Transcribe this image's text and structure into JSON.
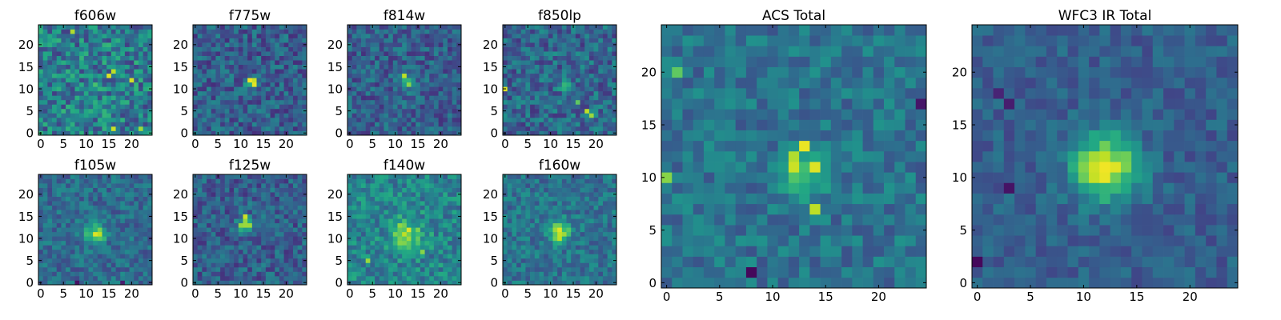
{
  "colors": {
    "colormap": "viridis",
    "frame": "#000000",
    "background": "#ffffff"
  },
  "chart_data": [
    {
      "type": "heatmap",
      "title": "f606w",
      "grid_size": 25,
      "xlim": [
        -0.5,
        24.5
      ],
      "ylim": [
        -0.5,
        24.5
      ],
      "xticks": [
        0,
        5,
        10,
        15,
        20
      ],
      "yticks": [
        0,
        5,
        10,
        15,
        20
      ],
      "colormap": "viridis",
      "seed": 606,
      "background_level": 0.42,
      "noise": 0.24,
      "sources": [
        {
          "x": 12,
          "y": 11,
          "sigma": 1.2,
          "amp": 0.1
        }
      ],
      "hotspots": [
        {
          "x": 15,
          "y": 13,
          "v": 0.95
        },
        {
          "x": 16,
          "y": 14,
          "v": 0.9
        },
        {
          "x": 16,
          "y": 1,
          "v": 0.92
        },
        {
          "x": 20,
          "y": 12,
          "v": 0.93
        },
        {
          "x": 7,
          "y": 23,
          "v": 0.88
        },
        {
          "x": 22,
          "y": 1,
          "v": 0.85
        }
      ],
      "coldspots": []
    },
    {
      "type": "heatmap",
      "title": "f775w",
      "grid_size": 25,
      "xlim": [
        -0.5,
        24.5
      ],
      "ylim": [
        -0.5,
        24.5
      ],
      "xticks": [
        0,
        5,
        10,
        15,
        20
      ],
      "yticks": [
        0,
        5,
        10,
        15,
        20
      ],
      "colormap": "viridis",
      "seed": 775,
      "background_level": 0.3,
      "noise": 0.17,
      "sources": [
        {
          "x": 12.5,
          "y": 11.5,
          "sigma": 0.9,
          "amp": 0.62
        }
      ],
      "hotspots": [
        {
          "x": 12,
          "y": 12,
          "v": 0.98
        },
        {
          "x": 13,
          "y": 11,
          "v": 0.96
        }
      ],
      "coldspots": []
    },
    {
      "type": "heatmap",
      "title": "f814w",
      "grid_size": 25,
      "xlim": [
        -0.5,
        24.5
      ],
      "ylim": [
        -0.5,
        24.5
      ],
      "xticks": [
        0,
        5,
        10,
        15,
        20
      ],
      "yticks": [
        0,
        5,
        10,
        15,
        20
      ],
      "colormap": "viridis",
      "seed": 814,
      "background_level": 0.3,
      "noise": 0.16,
      "sources": [
        {
          "x": 12.5,
          "y": 11.5,
          "sigma": 1.1,
          "amp": 0.5
        }
      ],
      "hotspots": [
        {
          "x": 12,
          "y": 13,
          "v": 0.9
        },
        {
          "x": 13,
          "y": 11,
          "v": 0.82
        }
      ],
      "coldspots": []
    },
    {
      "type": "heatmap",
      "title": "f850lp",
      "grid_size": 25,
      "xlim": [
        -0.5,
        24.5
      ],
      "ylim": [
        -0.5,
        24.5
      ],
      "xticks": [
        0,
        5,
        10,
        15,
        20
      ],
      "yticks": [
        0,
        5,
        10,
        15,
        20
      ],
      "colormap": "viridis",
      "seed": 850,
      "background_level": 0.33,
      "noise": 0.18,
      "sources": [
        {
          "x": 13,
          "y": 11,
          "sigma": 1.2,
          "amp": 0.18
        }
      ],
      "hotspots": [
        {
          "x": 0,
          "y": 10,
          "v": 0.95
        },
        {
          "x": 18,
          "y": 5,
          "v": 0.9
        },
        {
          "x": 19,
          "y": 4,
          "v": 0.85
        },
        {
          "x": 16,
          "y": 7,
          "v": 0.75
        }
      ],
      "coldspots": []
    },
    {
      "type": "heatmap",
      "title": "f105w",
      "grid_size": 25,
      "xlim": [
        -0.5,
        24.5
      ],
      "ylim": [
        -0.5,
        24.5
      ],
      "xticks": [
        0,
        5,
        10,
        15,
        20
      ],
      "yticks": [
        0,
        5,
        10,
        15,
        20
      ],
      "colormap": "viridis",
      "seed": 105,
      "background_level": 0.35,
      "noise": 0.14,
      "sources": [
        {
          "x": 12,
          "y": 11,
          "sigma": 1.6,
          "amp": 0.45
        }
      ],
      "hotspots": [
        {
          "x": 12,
          "y": 11,
          "v": 0.95
        },
        {
          "x": 13,
          "y": 11,
          "v": 0.9
        }
      ],
      "coldspots": [
        {
          "x": 8,
          "y": 0,
          "v": 0.05
        },
        {
          "x": 18,
          "y": 0,
          "v": 0.08
        }
      ]
    },
    {
      "type": "heatmap",
      "title": "f125w",
      "grid_size": 25,
      "xlim": [
        -0.5,
        24.5
      ],
      "ylim": [
        -0.5,
        24.5
      ],
      "xticks": [
        0,
        5,
        10,
        15,
        20
      ],
      "yticks": [
        0,
        5,
        10,
        15,
        20
      ],
      "colormap": "viridis",
      "seed": 125,
      "background_level": 0.3,
      "noise": 0.16,
      "sources": [
        {
          "x": 11,
          "y": 13,
          "sigma": 1.2,
          "amp": 0.55
        }
      ],
      "hotspots": [
        {
          "x": 11,
          "y": 15,
          "v": 0.92
        },
        {
          "x": 11,
          "y": 13,
          "v": 0.85
        }
      ],
      "coldspots": []
    },
    {
      "type": "heatmap",
      "title": "f140w",
      "grid_size": 25,
      "xlim": [
        -0.5,
        24.5
      ],
      "ylim": [
        -0.5,
        24.5
      ],
      "xticks": [
        0,
        5,
        10,
        15,
        20
      ],
      "yticks": [
        0,
        5,
        10,
        15,
        20
      ],
      "colormap": "viridis",
      "seed": 140,
      "background_level": 0.45,
      "noise": 0.17,
      "sources": [
        {
          "x": 12.5,
          "y": 11,
          "sigma": 2.4,
          "amp": 0.38
        }
      ],
      "hotspots": [
        {
          "x": 13,
          "y": 12,
          "v": 0.95
        },
        {
          "x": 12,
          "y": 11,
          "v": 0.9
        },
        {
          "x": 4,
          "y": 5,
          "v": 0.85
        },
        {
          "x": 16,
          "y": 7,
          "v": 0.82
        }
      ],
      "coldspots": []
    },
    {
      "type": "heatmap",
      "title": "f160w",
      "grid_size": 25,
      "xlim": [
        -0.5,
        24.5
      ],
      "ylim": [
        -0.5,
        24.5
      ],
      "xticks": [
        0,
        5,
        10,
        15,
        20
      ],
      "yticks": [
        0,
        5,
        10,
        15,
        20
      ],
      "colormap": "viridis",
      "seed": 160,
      "background_level": 0.38,
      "noise": 0.14,
      "sources": [
        {
          "x": 12,
          "y": 11.5,
          "sigma": 1.8,
          "amp": 0.45
        }
      ],
      "hotspots": [
        {
          "x": 12,
          "y": 12,
          "v": 0.95
        },
        {
          "x": 12,
          "y": 10,
          "v": 0.9
        }
      ],
      "coldspots": []
    },
    {
      "type": "heatmap",
      "title": "ACS Total",
      "grid_size": 25,
      "xlim": [
        -0.5,
        24.5
      ],
      "ylim": [
        -0.5,
        24.5
      ],
      "xticks": [
        0,
        5,
        10,
        15,
        20
      ],
      "yticks": [
        0,
        5,
        10,
        15,
        20
      ],
      "colormap": "viridis",
      "seed": 901,
      "background_level": 0.38,
      "noise": 0.13,
      "sources": [
        {
          "x": 13,
          "y": 10.5,
          "sigma": 1.6,
          "amp": 0.35
        }
      ],
      "hotspots": [
        {
          "x": 13,
          "y": 13,
          "v": 0.97
        },
        {
          "x": 12,
          "y": 12,
          "v": 0.88
        },
        {
          "x": 12,
          "y": 11,
          "v": 0.92
        },
        {
          "x": 14,
          "y": 11,
          "v": 0.95
        },
        {
          "x": 14,
          "y": 7,
          "v": 0.9
        },
        {
          "x": 0,
          "y": 10,
          "v": 0.82
        },
        {
          "x": 1,
          "y": 20,
          "v": 0.75
        }
      ],
      "coldspots": [
        {
          "x": 8,
          "y": 1,
          "v": 0.02
        },
        {
          "x": 24,
          "y": 17,
          "v": 0.06
        }
      ]
    },
    {
      "type": "heatmap",
      "title": "WFC3 IR Total",
      "grid_size": 25,
      "xlim": [
        -0.5,
        24.5
      ],
      "ylim": [
        -0.5,
        24.5
      ],
      "xticks": [
        0,
        5,
        10,
        15,
        20
      ],
      "yticks": [
        0,
        5,
        10,
        15,
        20
      ],
      "colormap": "viridis",
      "seed": 902,
      "background_level": 0.3,
      "noise": 0.1,
      "sources": [
        {
          "x": 12,
          "y": 11,
          "sigma": 2.1,
          "amp": 0.68
        }
      ],
      "hotspots": [
        {
          "x": 12,
          "y": 11,
          "v": 0.98
        },
        {
          "x": 12,
          "y": 12,
          "v": 0.9
        }
      ],
      "coldspots": [
        {
          "x": 0,
          "y": 2,
          "v": 0.02
        },
        {
          "x": 3,
          "y": 9,
          "v": 0.05
        },
        {
          "x": 3,
          "y": 17,
          "v": 0.08
        },
        {
          "x": 2,
          "y": 18,
          "v": 0.1
        }
      ]
    }
  ]
}
